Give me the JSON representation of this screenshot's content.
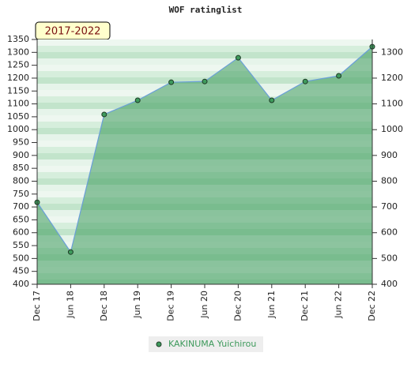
{
  "chart_data": {
    "type": "line",
    "title": "WOF ratinglist",
    "subtitle": "2017-2022",
    "categories": [
      "Dec 17",
      "Jun 18",
      "Dec 18",
      "Jun 19",
      "Dec 19",
      "Jun 20",
      "Dec 20",
      "Jun 21",
      "Dec 21",
      "Jun 22",
      "Dec 22"
    ],
    "series": [
      {
        "name": "KAKINUMA Yuichirou",
        "color": "#3e9a5c",
        "line_color": "#6a9fd8",
        "values": [
          718,
          525,
          1059,
          1114,
          1184,
          1187,
          1279,
          1114,
          1187,
          1209,
          1322
        ]
      }
    ],
    "ylim": [
      400,
      1350
    ],
    "yticks": [
      400,
      450,
      500,
      550,
      600,
      650,
      700,
      750,
      800,
      850,
      900,
      950,
      1000,
      1050,
      1100,
      1150,
      1200,
      1250,
      1300,
      1350
    ],
    "y2lim": [
      400,
      1350
    ],
    "y2ticks": [
      400,
      500,
      600,
      700,
      800,
      900,
      1000,
      1100,
      1200,
      1300
    ],
    "legend": "bottom"
  }
}
